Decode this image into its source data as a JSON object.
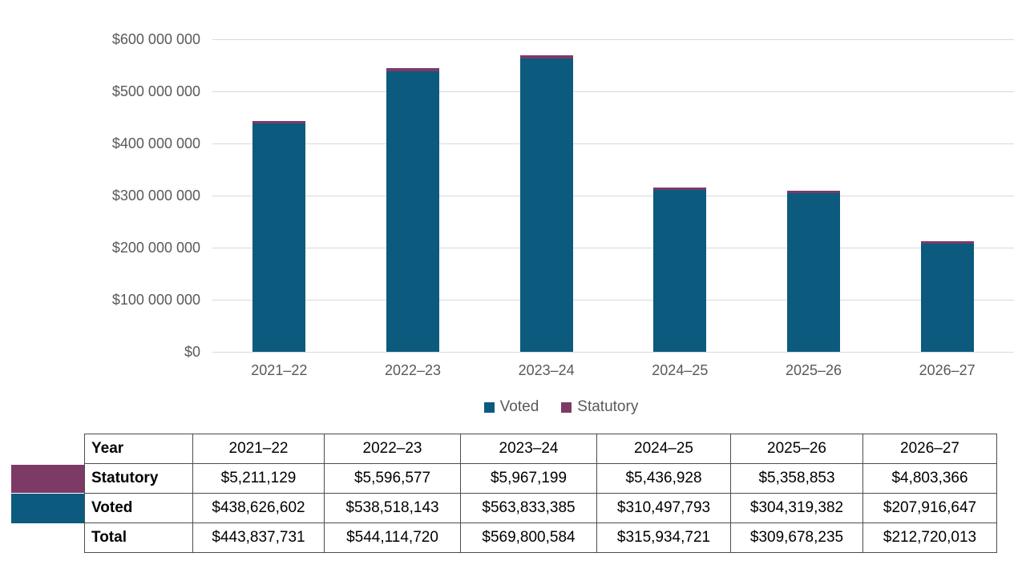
{
  "chart_data": {
    "type": "bar",
    "stacked": true,
    "title": "",
    "xlabel": "",
    "ylabel": "",
    "categories": [
      "2021–22",
      "2022–23",
      "2023–24",
      "2024–25",
      "2025–26",
      "2026–27"
    ],
    "series": [
      {
        "name": "Voted",
        "color": "#0C5A7E",
        "values": [
          438626602,
          538518143,
          563833385,
          310497793,
          304319382,
          207916647
        ]
      },
      {
        "name": "Statutory",
        "color": "#7D3A67",
        "values": [
          5211129,
          5596577,
          5967199,
          5436928,
          5358853,
          4803366
        ]
      }
    ],
    "totals": [
      443837731,
      544114720,
      569800584,
      315934721,
      309678235,
      212720013
    ],
    "ylim": [
      0,
      600000000
    ],
    "y_tick_interval": 100000000,
    "y_tick_labels": [
      "$0",
      "$100 000 000",
      "$200 000 000",
      "$300 000 000",
      "$400 000 000",
      "$500 000 000",
      "$600 000 000"
    ],
    "grid": true,
    "legend_position": "bottom"
  },
  "legend": {
    "items": [
      {
        "label": "Voted",
        "color": "#0C5A7E"
      },
      {
        "label": "Statutory",
        "color": "#7D3A67"
      }
    ]
  },
  "table": {
    "header": [
      "Year",
      "2021–22",
      "2022–23",
      "2023–24",
      "2024–25",
      "2025–26",
      "2026–27"
    ],
    "rows": [
      {
        "label": "Statutory",
        "swatch": "#7D3A67",
        "values": [
          "$5,211,129",
          "$5,596,577",
          "$5,967,199",
          "$5,436,928",
          "$5,358,853",
          "$4,803,366"
        ]
      },
      {
        "label": "Voted",
        "swatch": "#0C5A7E",
        "values": [
          "$438,626,602",
          "$538,518,143",
          "$563,833,385",
          "$310,497,793",
          "$304,319,382",
          "$207,916,647"
        ]
      },
      {
        "label": "Total",
        "swatch": null,
        "values": [
          "$443,837,731",
          "$544,114,720",
          "$569,800,584",
          "$315,934,721",
          "$309,678,235",
          "$212,720,013"
        ]
      }
    ]
  },
  "colors": {
    "voted": "#0C5A7E",
    "statutory": "#7D3A67",
    "axis_text": "#595959",
    "gridline": "#D9D9D9",
    "table_border": "#4D4D4D"
  }
}
